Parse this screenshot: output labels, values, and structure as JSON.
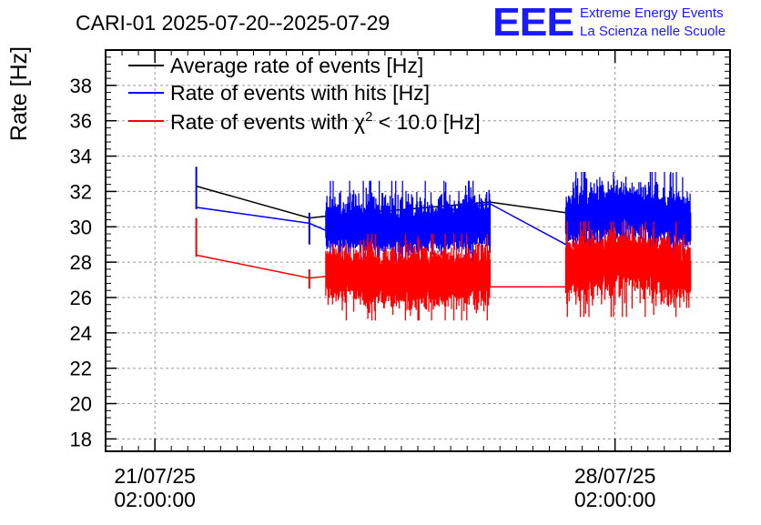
{
  "header": {
    "title": "CARI-01 2025-07-20--2025-07-29",
    "logo_text": "EEE",
    "logo_line1": "Extreme Energy Events",
    "logo_line2": "La Scienza nelle Scuole"
  },
  "chart_data": {
    "type": "line",
    "title": "CARI-01 2025-07-20--2025-07-29",
    "ylabel": "Rate [Hz]",
    "xlabel": "",
    "grid": true,
    "legend_position": "top-left",
    "x_unit": "days since 21/07/25 02:00:00",
    "xlim": [
      -0.75,
      8.75
    ],
    "ylim": [
      17.3,
      40
    ],
    "y_ticks": [
      18,
      20,
      22,
      24,
      26,
      28,
      30,
      32,
      34,
      36,
      38
    ],
    "y_tick_labels": [
      "18",
      "20",
      "22",
      "24",
      "26",
      "28",
      "30",
      "32",
      "34",
      "36",
      "38"
    ],
    "x_ticks": [
      {
        "value": 0,
        "date": "21/07/25",
        "time": "02:00:00"
      },
      {
        "value": 7,
        "date": "28/07/25",
        "time": "02:00:00"
      }
    ],
    "legend": [
      {
        "key": "average",
        "label": "Average rate of events [Hz]",
        "color": "#000000"
      },
      {
        "key": "hits",
        "label": "Rate of events with hits [Hz]",
        "color": "#0000ff"
      },
      {
        "key": "chi2",
        "label_main": "Rate of events with χ",
        "label_sup": "2",
        "label_rest": " < 10.0 [Hz]",
        "color": "#ff0000"
      }
    ],
    "series": [
      {
        "name": "Average rate of events [Hz]",
        "key": "average",
        "color": "#000000",
        "x": [
          0.63,
          2.35,
          2.6,
          5.1,
          6.25
        ],
        "values": [
          32.3,
          30.5,
          30.6,
          31.4,
          30.8
        ]
      },
      {
        "name": "Rate of events with hits [Hz]",
        "key": "hits",
        "color": "#0000ff",
        "x": [
          0.63,
          2.35,
          2.6,
          5.1,
          6.25
        ],
        "values": [
          31.1,
          30.2,
          29.8,
          31.3,
          29.0
        ],
        "spikes": [
          {
            "x": 0.63,
            "low": 31.0,
            "high": 33.4
          },
          {
            "x": 2.35,
            "low": 29.0,
            "high": 30.8
          }
        ],
        "dense_segments": [
          {
            "x_start": 2.6,
            "x_end": 5.1,
            "mean_start": 30.0,
            "mean_mid": 29.6,
            "mean_end": 30.2,
            "min": 28.0,
            "max": 32.6
          },
          {
            "x_start": 6.25,
            "x_end": 8.15,
            "mean_start": 30.2,
            "mean_mid": 31.2,
            "mean_end": 29.8,
            "min": 28.3,
            "max": 33.1
          }
        ]
      },
      {
        "name": "Rate of events with χ² < 10.0 [Hz]",
        "key": "chi2",
        "color": "#ff0000",
        "x": [
          0.63,
          2.35,
          2.6,
          5.1,
          6.25
        ],
        "values": [
          28.4,
          27.1,
          27.2,
          26.6,
          26.6
        ],
        "spikes": [
          {
            "x": 0.63,
            "low": 28.3,
            "high": 30.5
          },
          {
            "x": 2.35,
            "low": 26.5,
            "high": 27.6
          }
        ],
        "dense_segments": [
          {
            "x_start": 2.6,
            "x_end": 5.1,
            "mean_start": 27.6,
            "mean_mid": 26.9,
            "mean_end": 27.4,
            "min": 24.7,
            "max": 29.6
          },
          {
            "x_start": 6.25,
            "x_end": 8.15,
            "mean_start": 27.6,
            "mean_mid": 28.6,
            "mean_end": 27.1,
            "min": 24.9,
            "max": 30.3
          }
        ]
      }
    ]
  }
}
